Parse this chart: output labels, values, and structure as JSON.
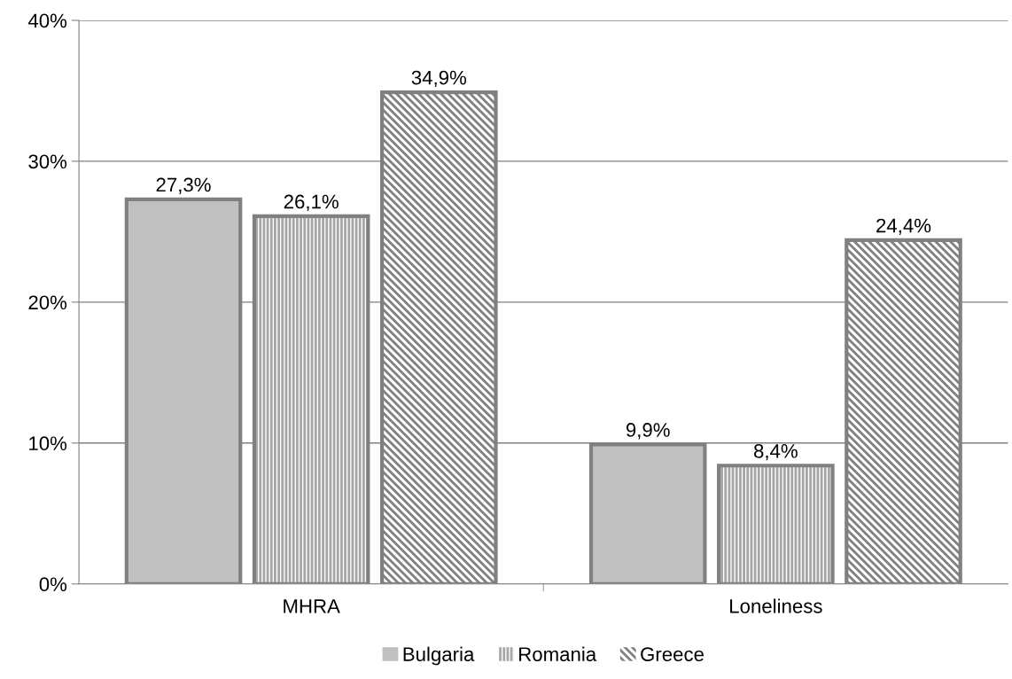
{
  "chart_data": {
    "type": "bar",
    "categories": [
      "MHRA",
      "Loneliness"
    ],
    "series": [
      {
        "name": "Bulgaria",
        "color": "#c0c0c0",
        "values": [
          27.3,
          9.9
        ],
        "value_labels": [
          "27,3%",
          "9,9%"
        ]
      },
      {
        "name": "Romania",
        "color": "#a6a6a6",
        "values": [
          26.1,
          8.4
        ],
        "value_labels": [
          "26,1%",
          "8,4%"
        ]
      },
      {
        "name": "Greece",
        "color": "#808080",
        "values": [
          34.9,
          24.4
        ],
        "value_labels": [
          "34,9%",
          "24,4%"
        ]
      }
    ],
    "ylim": [
      0,
      40
    ],
    "yticks": [
      {
        "value": 0,
        "label": "0%"
      },
      {
        "value": 10,
        "label": "10%"
      },
      {
        "value": 20,
        "label": "20%"
      },
      {
        "value": 30,
        "label": "30%"
      },
      {
        "value": 40,
        "label": "40%"
      }
    ],
    "grid": "y",
    "legend": "bottom"
  }
}
